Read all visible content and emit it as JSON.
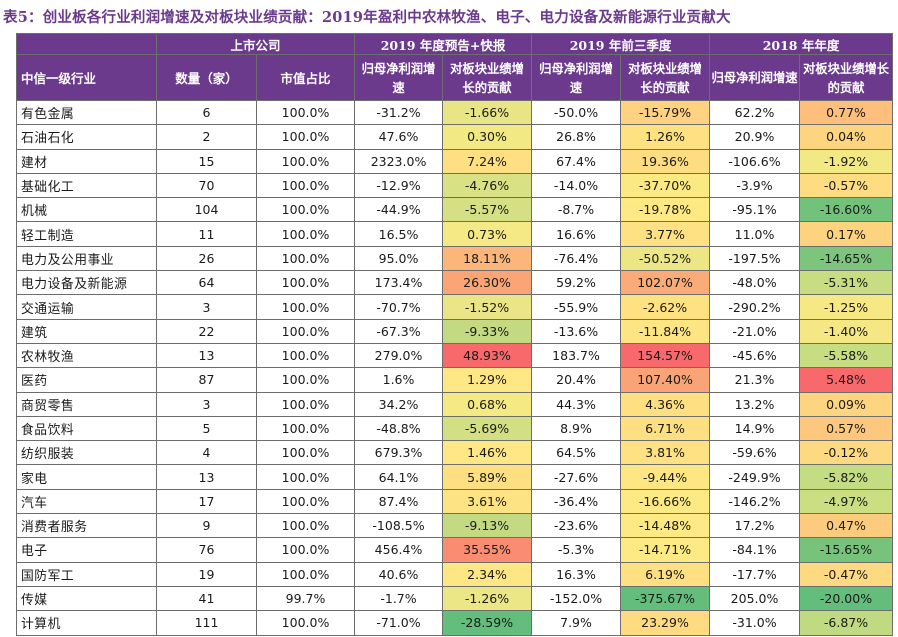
{
  "title": "表5：创业板各行业利润增速及对板块业绩贡献：2019年盈利中农林牧渔、电子、电力设备及新能源行业贡献大",
  "headers": {
    "listed": "上市公司",
    "period_2019_forecast": "2019 年度预告+快报",
    "period_2019_q3": "2019 年前三季度",
    "period_2018": "2018 年年度",
    "industry": "中信一级行业",
    "count": "数量（家）",
    "mktcap": "市值占比",
    "growth": "归母净利润增速",
    "contrib": "对板块业绩增长的贡献"
  },
  "colors": {
    "header_bg": "#6b3a8c",
    "header_text": "#ffffff",
    "scale_low": "#63be7b",
    "scale_mid": "#ffeb84",
    "scale_high": "#f8696b"
  },
  "rows": [
    {
      "industry": "有色金属",
      "count": "6",
      "mktcap": "100.0%",
      "g19": "-31.2%",
      "c19": "-1.66%",
      "g19q3": "-50.0%",
      "c19q3": "-15.79%",
      "g18": "62.2%",
      "c18": "0.77%",
      "b19": "#e8e587",
      "b19q3": "#fed280",
      "b18": "#fdbf7b"
    },
    {
      "industry": "石油石化",
      "count": "2",
      "mktcap": "100.0%",
      "g19": "47.6%",
      "c19": "0.30%",
      "g19q3": "26.8%",
      "c19q3": "1.26%",
      "g18": "20.9%",
      "c18": "0.04%",
      "b19": "#f2e884",
      "b19q3": "#fee282",
      "b18": "#fdd581"
    },
    {
      "industry": "建材",
      "count": "15",
      "mktcap": "100.0%",
      "g19": "2323.0%",
      "c19": "7.24%",
      "g19q3": "67.4%",
      "c19q3": "19.36%",
      "g18": "-106.6%",
      "c18": "-1.92%",
      "b19": "#fedf82",
      "b19q3": "#fedc81",
      "b18": "#f2e884"
    },
    {
      "industry": "基础化工",
      "count": "70",
      "mktcap": "100.0%",
      "g19": "-12.9%",
      "c19": "-4.76%",
      "g19q3": "-14.0%",
      "c19q3": "-37.70%",
      "g18": "-3.9%",
      "c18": "-0.57%",
      "b19": "#d8e183",
      "b19q3": "#fbe983",
      "b18": "#fddc82"
    },
    {
      "industry": "机械",
      "count": "104",
      "mktcap": "100.0%",
      "g19": "-44.9%",
      "c19": "-5.57%",
      "g19q3": "-8.7%",
      "c19q3": "-19.78%",
      "g18": "-95.1%",
      "c18": "-16.60%",
      "b19": "#d4e083",
      "b19q3": "#fee984",
      "b18": "#72c27c"
    },
    {
      "industry": "轻工制造",
      "count": "11",
      "mktcap": "100.0%",
      "g19": "16.5%",
      "c19": "0.73%",
      "g19q3": "16.6%",
      "c19q3": "3.77%",
      "g18": "11.0%",
      "c18": "0.17%",
      "b19": "#f4e984",
      "b19q3": "#fee182",
      "b18": "#fdd380"
    },
    {
      "industry": "电力及公用事业",
      "count": "26",
      "mktcap": "100.0%",
      "g19": "95.0%",
      "c19": "18.11%",
      "g19q3": "-76.4%",
      "c19q3": "-50.52%",
      "g18": "-197.5%",
      "c18": "-14.65%",
      "b19": "#fcb679",
      "b19q3": "#ece684",
      "b18": "#7dc57d"
    },
    {
      "industry": "电力设备及新能源",
      "count": "64",
      "mktcap": "100.0%",
      "g19": "173.4%",
      "c19": "26.30%",
      "g19q3": "59.2%",
      "c19q3": "102.07%",
      "g18": "-48.0%",
      "c18": "-5.31%",
      "b19": "#fba476",
      "b19q3": "#fbab77",
      "b18": "#c8dd82"
    },
    {
      "industry": "交通运输",
      "count": "3",
      "mktcap": "100.0%",
      "g19": "-70.7%",
      "c19": "-1.52%",
      "g19q3": "-55.9%",
      "c19q3": "-2.62%",
      "g18": "-290.2%",
      "c18": "-1.25%",
      "b19": "#eae587",
      "b19q3": "#fee282",
      "b18": "#f6e984"
    },
    {
      "industry": "建筑",
      "count": "22",
      "mktcap": "100.0%",
      "g19": "-67.3%",
      "c19": "-9.33%",
      "g19q3": "-13.6%",
      "c19q3": "-11.84%",
      "g18": "-21.0%",
      "c18": "-1.40%",
      "b19": "#c3da82",
      "b19q3": "#fee583",
      "b18": "#f5e884"
    },
    {
      "industry": "农林牧渔",
      "count": "13",
      "mktcap": "100.0%",
      "g19": "279.0%",
      "c19": "48.93%",
      "g19q3": "183.7%",
      "c19q3": "154.57%",
      "g18": "-45.6%",
      "c18": "-5.58%",
      "b19": "#f8696b",
      "b19q3": "#f8696b",
      "b18": "#c6dd82"
    },
    {
      "industry": "医药",
      "count": "87",
      "mktcap": "100.0%",
      "g19": "1.6%",
      "c19": "1.29%",
      "g19q3": "20.4%",
      "c19q3": "107.40%",
      "g18": "21.3%",
      "c18": "5.48%",
      "b19": "#fee784",
      "b19q3": "#f9a376",
      "b18": "#f8696b"
    },
    {
      "industry": "商贸零售",
      "count": "3",
      "mktcap": "100.0%",
      "g19": "34.2%",
      "c19": "0.68%",
      "g19q3": "44.3%",
      "c19q3": "4.36%",
      "g18": "13.2%",
      "c18": "0.09%",
      "b19": "#f5e984",
      "b19q3": "#fee082",
      "b18": "#fdd581"
    },
    {
      "industry": "食品饮料",
      "count": "5",
      "mktcap": "100.0%",
      "g19": "-48.8%",
      "c19": "-5.69%",
      "g19q3": "8.9%",
      "c19q3": "6.71%",
      "g18": "14.9%",
      "c18": "0.57%",
      "b19": "#d3df83",
      "b19q3": "#fedf82",
      "b18": "#fdc87d"
    },
    {
      "industry": "纺织服装",
      "count": "4",
      "mktcap": "100.0%",
      "g19": "679.3%",
      "c19": "1.46%",
      "g19q3": "64.5%",
      "c19q3": "3.81%",
      "g18": "-59.6%",
      "c18": "-0.12%",
      "b19": "#fee784",
      "b19q3": "#fee182",
      "b18": "#fdd982"
    },
    {
      "industry": "家电",
      "count": "13",
      "mktcap": "100.0%",
      "g19": "64.1%",
      "c19": "5.89%",
      "g19q3": "-27.6%",
      "c19q3": "-9.44%",
      "g18": "-249.9%",
      "c18": "-5.82%",
      "b19": "#fee083",
      "b19q3": "#fee783",
      "b18": "#c4dc82"
    },
    {
      "industry": "汽车",
      "count": "17",
      "mktcap": "100.0%",
      "g19": "87.4%",
      "c19": "3.61%",
      "g19q3": "-36.4%",
      "c19q3": "-16.66%",
      "g18": "-146.2%",
      "c18": "-4.97%",
      "b19": "#fee384",
      "b19q3": "#feea84",
      "b18": "#cbde82"
    },
    {
      "industry": "消费者服务",
      "count": "9",
      "mktcap": "100.0%",
      "g19": "-108.5%",
      "c19": "-9.13%",
      "g19q3": "-23.6%",
      "c19q3": "-14.48%",
      "g18": "17.2%",
      "c18": "0.47%",
      "b19": "#c4da82",
      "b19q3": "#feea84",
      "b18": "#fdcb7e"
    },
    {
      "industry": "电子",
      "count": "76",
      "mktcap": "100.0%",
      "g19": "456.4%",
      "c19": "35.55%",
      "g19q3": "-5.3%",
      "c19q3": "-14.71%",
      "g18": "-84.1%",
      "c18": "-15.65%",
      "b19": "#fa8c71",
      "b19q3": "#feea84",
      "b18": "#78c37c"
    },
    {
      "industry": "国防军工",
      "count": "19",
      "mktcap": "100.0%",
      "g19": "40.6%",
      "c19": "2.34%",
      "g19q3": "16.3%",
      "c19q3": "6.19%",
      "g18": "-17.7%",
      "c18": "-0.47%",
      "b19": "#fee684",
      "b19q3": "#fedf82",
      "b18": "#fdda82"
    },
    {
      "industry": "传媒",
      "count": "41",
      "mktcap": "99.7%",
      "g19": "-1.7%",
      "c19": "-1.26%",
      "g19q3": "-152.0%",
      "c19q3": "-375.67%",
      "g18": "205.0%",
      "c18": "-20.00%",
      "b19": "#ebe686",
      "b19q3": "#63be7b",
      "b18": "#63be7b"
    },
    {
      "industry": "计算机",
      "count": "111",
      "mktcap": "100.0%",
      "g19": "-71.0%",
      "c19": "-28.59%",
      "g19q3": "7.9%",
      "c19q3": "23.29%",
      "g18": "-31.0%",
      "c18": "-6.87%",
      "b19": "#63be7b",
      "b19q3": "#fedb81",
      "b18": "#bfda81"
    }
  ]
}
